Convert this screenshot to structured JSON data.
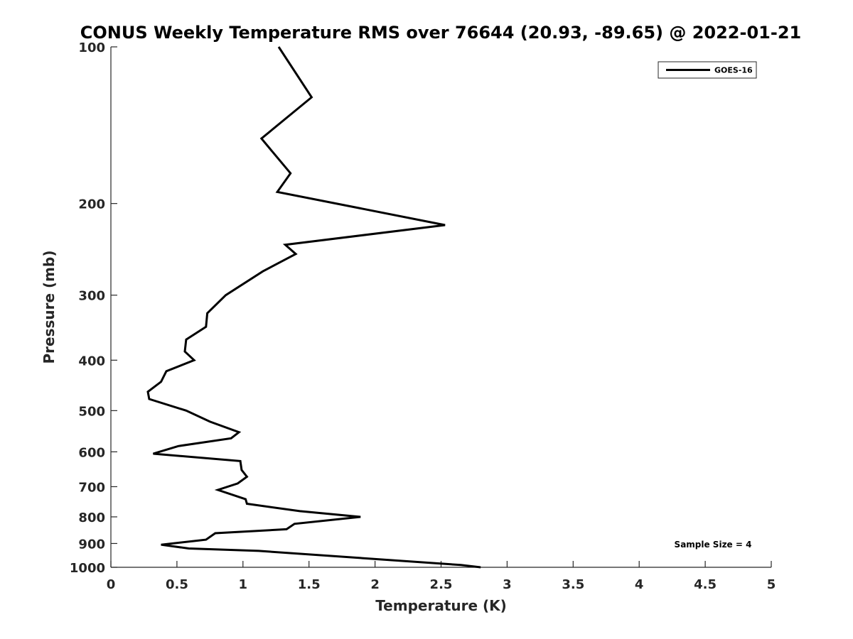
{
  "chart_data": {
    "type": "line",
    "title": "CONUS Weekly Temperature RMS over 76644 (20.93, -89.65) @ 2022-01-21",
    "xlabel": "Temperature (K)",
    "ylabel": "Pressure (mb)",
    "xlim": [
      0,
      5
    ],
    "ylim": [
      100,
      1000
    ],
    "y_scale": "log",
    "y_reversed": true,
    "xticks": [
      0,
      0.5,
      1,
      1.5,
      2,
      2.5,
      3,
      3.5,
      4,
      4.5,
      5
    ],
    "xtick_labels": [
      "0",
      "0.5",
      "1",
      "1.5",
      "2",
      "2.5",
      "3",
      "3.5",
      "4",
      "4.5",
      "5"
    ],
    "yticks": [
      100,
      200,
      300,
      400,
      500,
      600,
      700,
      800,
      900,
      1000
    ],
    "ytick_labels": [
      "100",
      "200",
      "300",
      "400",
      "500",
      "600",
      "700",
      "800",
      "900",
      "1000"
    ],
    "grid": false,
    "legend_position": "top-right",
    "series": [
      {
        "name": "GOES-16",
        "color": "#000000",
        "points": [
          [
            1.27,
            100
          ],
          [
            1.52,
            125
          ],
          [
            1.14,
            150
          ],
          [
            1.36,
            175
          ],
          [
            1.26,
            190
          ],
          [
            2.53,
            220
          ],
          [
            1.32,
            240
          ],
          [
            1.4,
            250
          ],
          [
            1.15,
            270
          ],
          [
            0.87,
            300
          ],
          [
            0.73,
            325
          ],
          [
            0.72,
            345
          ],
          [
            0.57,
            365
          ],
          [
            0.56,
            385
          ],
          [
            0.63,
            400
          ],
          [
            0.42,
            420
          ],
          [
            0.38,
            440
          ],
          [
            0.28,
            460
          ],
          [
            0.29,
            475
          ],
          [
            0.57,
            500
          ],
          [
            0.75,
            525
          ],
          [
            0.97,
            550
          ],
          [
            0.91,
            565
          ],
          [
            0.51,
            585
          ],
          [
            0.32,
            605
          ],
          [
            0.98,
            625
          ],
          [
            0.99,
            650
          ],
          [
            1.03,
            670
          ],
          [
            0.96,
            690
          ],
          [
            0.81,
            710
          ],
          [
            1.02,
            740
          ],
          [
            1.03,
            755
          ],
          [
            1.43,
            780
          ],
          [
            1.89,
            800
          ],
          [
            1.39,
            825
          ],
          [
            1.33,
            845
          ],
          [
            0.79,
            860
          ],
          [
            0.72,
            885
          ],
          [
            0.38,
            905
          ],
          [
            0.59,
            920
          ],
          [
            1.12,
            930
          ],
          [
            2.65,
            990
          ],
          [
            2.8,
            1000
          ]
        ]
      }
    ],
    "annotations": [
      {
        "text": "Sample Size = 4",
        "position": "bottom-right"
      }
    ]
  }
}
